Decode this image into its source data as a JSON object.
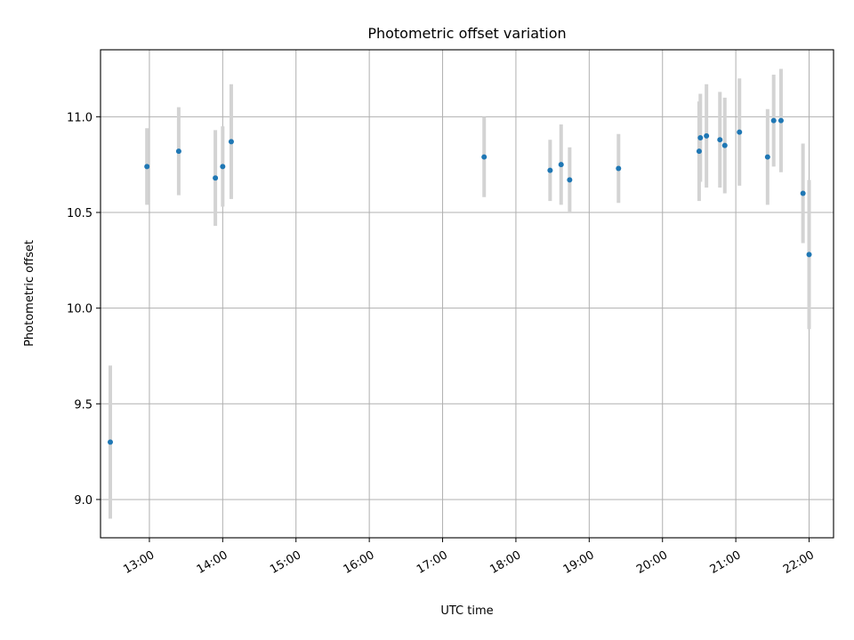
{
  "chart_data": {
    "type": "scatter",
    "title": "Photometric offset variation",
    "xlabel": "UTC time",
    "ylabel": "Photometric offset",
    "xlim": [
      "12:20",
      "22:20"
    ],
    "ylim": [
      8.8,
      11.35
    ],
    "x_ticks": [
      "13:00",
      "14:00",
      "15:00",
      "16:00",
      "17:00",
      "18:00",
      "19:00",
      "20:00",
      "21:00",
      "22:00"
    ],
    "y_ticks": [
      9.0,
      9.5,
      10.0,
      10.5,
      11.0
    ],
    "grid": true,
    "colors": {
      "point": "#1f77b4",
      "errorbar": "#d3d3d3",
      "grid": "#b0b0b0"
    },
    "points": [
      {
        "x": "12:28",
        "y": 9.3,
        "yerr": 0.4
      },
      {
        "x": "12:58",
        "y": 10.74,
        "yerr": 0.2
      },
      {
        "x": "13:24",
        "y": 10.82,
        "yerr": 0.23
      },
      {
        "x": "13:54",
        "y": 10.68,
        "yerr": 0.25
      },
      {
        "x": "14:00",
        "y": 10.74,
        "yerr": 0.21
      },
      {
        "x": "14:07",
        "y": 10.87,
        "yerr": 0.3
      },
      {
        "x": "17:34",
        "y": 10.79,
        "yerr": 0.21
      },
      {
        "x": "18:28",
        "y": 10.72,
        "yerr": 0.16
      },
      {
        "x": "18:37",
        "y": 10.75,
        "yerr": 0.21
      },
      {
        "x": "18:44",
        "y": 10.67,
        "yerr": 0.17
      },
      {
        "x": "19:24",
        "y": 10.73,
        "yerr": 0.18
      },
      {
        "x": "20:30",
        "y": 10.82,
        "yerr": 0.26
      },
      {
        "x": "20:31",
        "y": 10.89,
        "yerr": 0.23
      },
      {
        "x": "20:36",
        "y": 10.9,
        "yerr": 0.27
      },
      {
        "x": "20:47",
        "y": 10.88,
        "yerr": 0.25
      },
      {
        "x": "20:51",
        "y": 10.85,
        "yerr": 0.25
      },
      {
        "x": "21:03",
        "y": 10.92,
        "yerr": 0.28
      },
      {
        "x": "21:26",
        "y": 10.79,
        "yerr": 0.25
      },
      {
        "x": "21:31",
        "y": 10.98,
        "yerr": 0.24
      },
      {
        "x": "21:37",
        "y": 10.98,
        "yerr": 0.27
      },
      {
        "x": "21:55",
        "y": 10.6,
        "yerr": 0.26
      },
      {
        "x": "22:00",
        "y": 10.28,
        "yerr": 0.39
      }
    ]
  }
}
